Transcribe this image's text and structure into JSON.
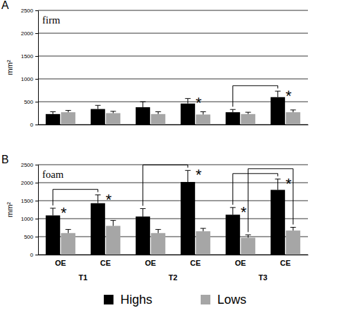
{
  "chart_data": [
    {
      "type": "bar",
      "panel_label": "A",
      "title": "firm",
      "y_label": "mm²",
      "categories": [
        null,
        null,
        null,
        null,
        null,
        null
      ],
      "series": [
        {
          "name": "Highs",
          "color": "#000000",
          "values": [
            230,
            340,
            380,
            460,
            270,
            600
          ],
          "errors": [
            50,
            80,
            120,
            110,
            60,
            130
          ]
        },
        {
          "name": "Lows",
          "color": "#a6a6a6",
          "values": [
            270,
            250,
            230,
            220,
            230,
            270
          ],
          "errors": [
            40,
            40,
            50,
            60,
            40,
            50
          ]
        }
      ],
      "ylim": [
        0,
        2500
      ],
      "yticks": [
        0,
        500,
        1000,
        1500,
        2000,
        2500
      ],
      "grid": true,
      "tick_labels": "y",
      "annotations": [
        {
          "text": "*",
          "category": 3,
          "series": 0
        },
        {
          "text": "*",
          "category": 5,
          "series": 0
        }
      ],
      "brackets": [
        {
          "series": 0,
          "from": 4,
          "to": 5
        }
      ]
    },
    {
      "type": "bar",
      "panel_label": "B",
      "title": "foam",
      "y_label": "mm²",
      "categories": [
        "OE",
        "CE",
        "OE",
        "CE",
        "OE",
        "CE"
      ],
      "groups": [
        "T1",
        "T2",
        "T3"
      ],
      "series": [
        {
          "name": "Highs",
          "color": "#000000",
          "values": [
            1090,
            1430,
            1060,
            2020,
            1110,
            1800
          ],
          "errors": [
            200,
            230,
            220,
            320,
            200,
            300
          ]
        },
        {
          "name": "Lows",
          "color": "#a6a6a6",
          "values": [
            600,
            800,
            600,
            650,
            470,
            670
          ],
          "errors": [
            100,
            150,
            100,
            80,
            80,
            90
          ]
        }
      ],
      "ylim": [
        0,
        2500
      ],
      "yticks": [
        0,
        500,
        1000,
        1500,
        2000,
        2500
      ],
      "grid": true,
      "legend": "bottom",
      "annotations": [
        {
          "text": "*",
          "category": 0,
          "series": 0
        },
        {
          "text": "*",
          "category": 1,
          "series": 0
        },
        {
          "text": "*",
          "category": 3,
          "series": 0
        },
        {
          "text": "*",
          "category": 4,
          "series": 0
        },
        {
          "text": "*",
          "category": 5,
          "series": 0
        }
      ],
      "brackets": [
        {
          "series": 0,
          "from": 0,
          "to": 1
        },
        {
          "series": 0,
          "from": 2,
          "to": 3
        },
        {
          "series": 0,
          "from": 4,
          "to": 5
        },
        {
          "series": 1,
          "from": 4,
          "to": 5
        }
      ]
    }
  ]
}
